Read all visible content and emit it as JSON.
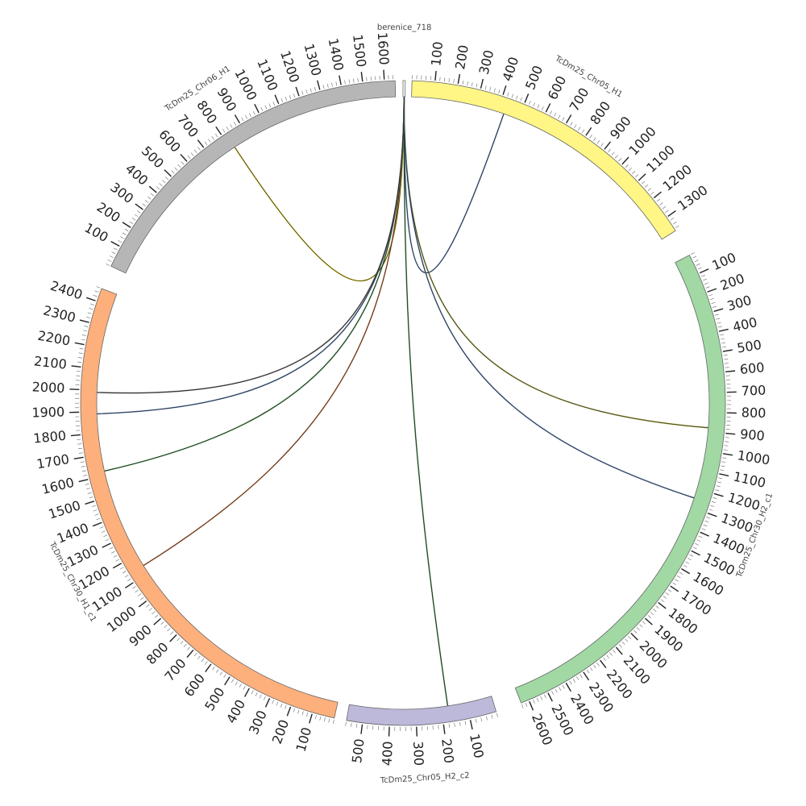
{
  "chart_data": {
    "type": "circos",
    "segments": [
      {
        "name": "berenice_718",
        "length": 12,
        "color": "#ffffff",
        "start_deg": 0.0,
        "end_deg": 0.4,
        "tick_step": 0,
        "label_every": 0
      },
      {
        "name": "TcDm25_Chr05_H1",
        "length": 1370,
        "color": "#fff685",
        "start_deg": 1.6,
        "end_deg": 57.7,
        "tick_step": 20,
        "label_every": 100
      },
      {
        "name": "TcDm25_Chr30_H2_c1",
        "length": 2640,
        "color": "#a1d8a4",
        "start_deg": 62.7,
        "end_deg": 158.5,
        "tick_step": 20,
        "label_every": 100
      },
      {
        "name": "TcDm25_Chr05_H2_c2",
        "length": 560,
        "color": "#bcb9da",
        "start_deg": 163.2,
        "end_deg": 190.1,
        "tick_step": 20,
        "label_every": 100
      },
      {
        "name": "TcDm25_Chr30_H1_c1",
        "length": 2460,
        "color": "#fdb07c",
        "start_deg": 192.3,
        "end_deg": 290.8,
        "tick_step": 20,
        "label_every": 100
      },
      {
        "name": "TcDm25_Chr06_H1",
        "length": 1650,
        "color": "#b6b6b6",
        "start_deg": 295.1,
        "end_deg": 358.6,
        "tick_step": 20,
        "label_every": 100
      }
    ],
    "links": [
      {
        "from": "berenice_718",
        "from_pos": 6,
        "to": "TcDm25_Chr05_H1",
        "to_pos": 430,
        "color": "#4a6ea8"
      },
      {
        "from": "berenice_718",
        "from_pos": 6,
        "to": "TcDm25_Chr06_H1",
        "to_pos": 820,
        "color": "#c8b400"
      },
      {
        "from": "berenice_718",
        "from_pos": 6,
        "to": "TcDm25_Chr30_H2_c1",
        "to_pos": 880,
        "color": "#8a8a20"
      },
      {
        "from": "berenice_718",
        "from_pos": 6,
        "to": "TcDm25_Chr30_H2_c1",
        "to_pos": 1250,
        "color": "#4a6ea8"
      },
      {
        "from": "berenice_718",
        "from_pos": 6,
        "to": "TcDm25_Chr05_H2_c2",
        "to_pos": 175,
        "color": "#2e7d32"
      },
      {
        "from": "berenice_718",
        "from_pos": 6,
        "to": "TcDm25_Chr30_H1_c1",
        "to_pos": 1140,
        "color": "#c0602a"
      },
      {
        "from": "berenice_718",
        "from_pos": 6,
        "to": "TcDm25_Chr30_H1_c1",
        "to_pos": 1620,
        "color": "#2e7d32"
      },
      {
        "from": "berenice_718",
        "from_pos": 6,
        "to": "TcDm25_Chr30_H1_c1",
        "to_pos": 1890,
        "color": "#4a6ea8"
      },
      {
        "from": "berenice_718",
        "from_pos": 6,
        "to": "TcDm25_Chr30_H1_c1",
        "to_pos": 1990,
        "color": "#555555"
      }
    ]
  }
}
